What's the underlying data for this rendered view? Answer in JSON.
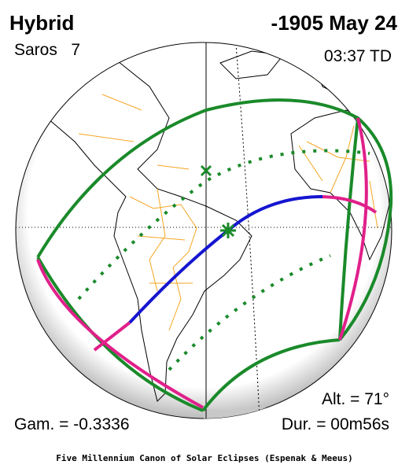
{
  "header": {
    "type": "Hybrid",
    "date": "-1905 May 24",
    "saros": "Saros   7",
    "time": "03:37 TD"
  },
  "stats": {
    "altitude": "Alt. = 71°",
    "gamma": "Gam. = -0.3336",
    "duration": "Dur. = 00m56s"
  },
  "footer": "Five Millennium Canon of Solar Eclipses (Espenak & Meeus)"
}
